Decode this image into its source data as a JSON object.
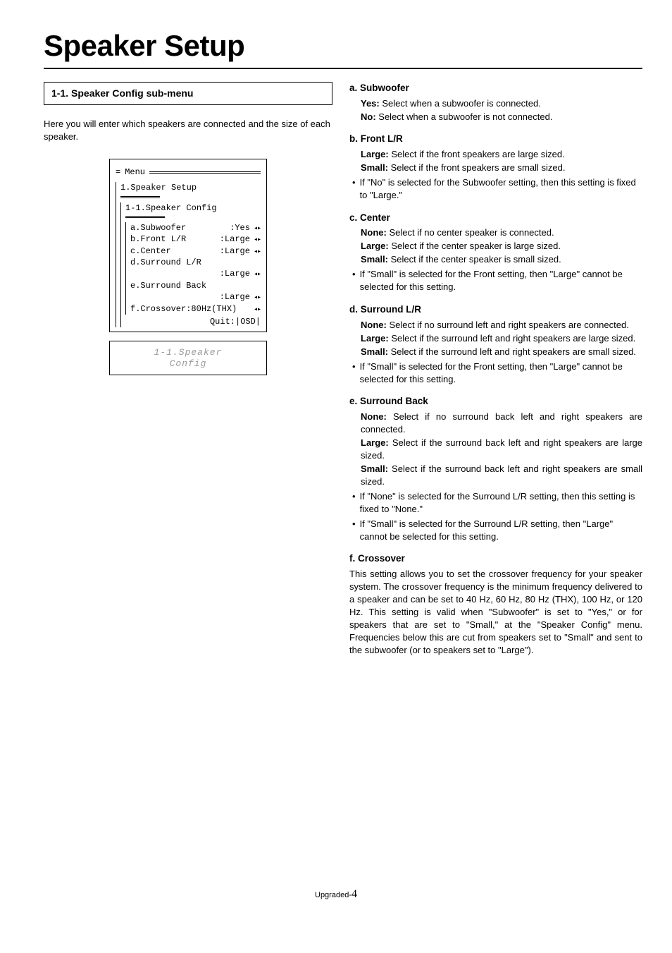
{
  "page_title": "Speaker Setup",
  "submenu_title": "1-1. Speaker Config sub-menu",
  "intro": "Here you will enter which speakers are connected and the size of each speaker.",
  "osd": {
    "menu_label": "Menu",
    "top_title": "1.Speaker Setup",
    "sub_title": "1-1.Speaker Config",
    "rows": [
      {
        "label": "a.Subwoofer",
        "value": ":Yes",
        "nav": "◂▸"
      },
      {
        "label": "b.Front L/R",
        "value": ":Large",
        "nav": "◂▸"
      },
      {
        "label": "c.Center",
        "value": ":Large",
        "nav": "◂▸"
      },
      {
        "label": "d.Surround L/R",
        "value": "",
        "nav": ""
      },
      {
        "label": "",
        "value": ":Large",
        "nav": "◂▸"
      },
      {
        "label": "e.Surround Back",
        "value": "",
        "nav": ""
      },
      {
        "label": "",
        "value": ":Large",
        "nav": "◂▸"
      },
      {
        "label": "f.Crossover:80Hz(THX)",
        "value": "",
        "nav": "◂▸"
      }
    ],
    "quit": "Quit:|OSD|"
  },
  "lcd": {
    "line1": "1-1.Speaker",
    "line2": "Config"
  },
  "sections": [
    {
      "head": "a. Subwoofer",
      "defs": [
        {
          "term": "Yes:",
          "text": " Select when a subwoofer is connected."
        },
        {
          "term": "No:",
          "text": " Select when a subwoofer is not connected."
        }
      ],
      "bullets": []
    },
    {
      "head": "b. Front L/R",
      "defs": [
        {
          "term": "Large:",
          "text": " Select if the front speakers are large sized."
        },
        {
          "term": "Small:",
          "text": " Select if the front speakers are small sized."
        }
      ],
      "bullets": [
        "If \"No\" is selected for the Subwoofer setting, then this setting is fixed to \"Large.\""
      ]
    },
    {
      "head": "c. Center",
      "defs": [
        {
          "term": "None:",
          "text": " Select if no center speaker is connected."
        },
        {
          "term": "Large:",
          "text": " Select if the center speaker is large sized."
        },
        {
          "term": "Small:",
          "text": " Select if the center speaker is small sized."
        }
      ],
      "bullets": [
        "If \"Small\" is selected for the Front setting, then \"Large\" cannot be selected for this setting."
      ]
    },
    {
      "head": "d. Surround L/R",
      "defs": [
        {
          "term": "None:",
          "text": " Select if no surround left and right speakers are connected."
        },
        {
          "term": "Large:",
          "text": " Select if the surround left and right speakers are large sized."
        },
        {
          "term": "Small:",
          "text": " Select if the surround left and right speakers are small sized."
        }
      ],
      "bullets": [
        "If \"Small\" is selected for the Front setting, then \"Large\" cannot be selected for this setting."
      ]
    },
    {
      "head": "e. Surround Back",
      "justify": true,
      "defs": [
        {
          "term": "None:",
          "text": " Select if no surround back left and right speakers are connected."
        },
        {
          "term": "Large:",
          "text": " Select if the surround back left and right speakers are large sized."
        },
        {
          "term": "Small:",
          "text": " Select if the surround back left and right speakers are small sized."
        }
      ],
      "bullets": [
        "If \"None\" is selected for the Surround L/R setting, then this setting is fixed to \"None.\"",
        "If \"Small\" is selected for the Surround L/R setting, then \"Large\" cannot be selected for this setting."
      ]
    }
  ],
  "crossover": {
    "head": "f. Crossover",
    "body": "This setting allows you to set the crossover frequency for your speaker system. The crossover frequency is the minimum frequency delivered to a speaker and can be set to 40 Hz, 60 Hz, 80 Hz (THX), 100 Hz, or 120 Hz. This setting is valid when \"Subwoofer\" is set to \"Yes,\" or for speakers that are set to \"Small,\" at the \"Speaker Config\" menu. Frequencies below this are cut from speakers set to \"Small\" and sent to the subwoofer (or to speakers set to \"Large\")."
  },
  "footer": {
    "label": "Upgraded-",
    "page": "4"
  }
}
